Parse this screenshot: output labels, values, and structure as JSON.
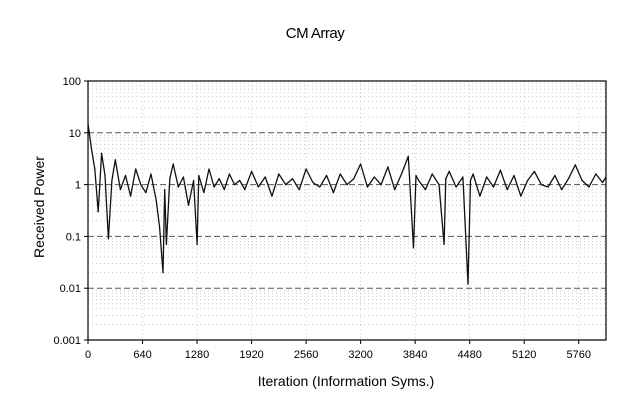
{
  "chart_data": {
    "type": "line",
    "title": "CM Array",
    "xlabel": "Iteration (Information Syms.)",
    "ylabel": "Received Power",
    "x_ticks": [
      "0",
      "640",
      "1280",
      "1920",
      "2560",
      "3200",
      "3840",
      "4480",
      "5120",
      "5760"
    ],
    "y_ticks": [
      "100",
      "10",
      "1",
      "0.1",
      "0.01",
      "0.001"
    ],
    "xlim": [
      0,
      6080
    ],
    "ylim": [
      0.001,
      100
    ],
    "yscale": "log",
    "grid": true,
    "legend": "none",
    "series": [
      {
        "x": [
          0,
          40,
          80,
          120,
          160,
          200,
          240,
          280,
          320,
          380,
          440,
          500,
          560,
          620,
          680,
          740,
          800,
          840,
          880,
          900,
          920,
          960,
          1000,
          1060,
          1120,
          1180,
          1240,
          1280,
          1300,
          1360,
          1420,
          1480,
          1540,
          1600,
          1660,
          1720,
          1780,
          1840,
          1920,
          2000,
          2080,
          2160,
          2240,
          2320,
          2400,
          2480,
          2560,
          2640,
          2720,
          2800,
          2880,
          2960,
          3040,
          3120,
          3200,
          3280,
          3360,
          3440,
          3520,
          3600,
          3680,
          3760,
          3820,
          3850,
          3880,
          3960,
          4040,
          4120,
          4180,
          4200,
          4240,
          4320,
          4400,
          4460,
          4490,
          4520,
          4600,
          4680,
          4760,
          4840,
          4920,
          5000,
          5080,
          5160,
          5240,
          5320,
          5400,
          5480,
          5560,
          5640,
          5720,
          5800,
          5880,
          5960,
          6040,
          6080
        ],
        "y": [
          15,
          5,
          2,
          0.3,
          4,
          1.5,
          0.09,
          1.2,
          3,
          0.8,
          1.5,
          0.6,
          2,
          1,
          0.7,
          1.6,
          0.5,
          0.15,
          0.02,
          0.8,
          0.07,
          1.3,
          2.5,
          0.9,
          1.4,
          0.4,
          1.2,
          0.07,
          1.5,
          0.7,
          2,
          0.9,
          1.3,
          0.8,
          1.6,
          1,
          1.2,
          0.8,
          1.8,
          0.9,
          1.4,
          0.6,
          1.6,
          1,
          1.3,
          0.8,
          2,
          1.1,
          0.9,
          1.5,
          0.7,
          1.6,
          1,
          1.3,
          2.5,
          0.9,
          1.4,
          1,
          2.2,
          0.8,
          1.6,
          3.5,
          0.06,
          1.5,
          1.2,
          0.8,
          1.6,
          1,
          0.07,
          1.3,
          1.8,
          0.9,
          1.4,
          0.012,
          1.2,
          1.6,
          0.6,
          1.4,
          0.9,
          1.9,
          0.8,
          1.5,
          0.6,
          1.2,
          1.8,
          1,
          0.9,
          1.5,
          0.8,
          1.3,
          2.4,
          1.2,
          0.9,
          1.6,
          1.1,
          1.4
        ]
      }
    ]
  }
}
